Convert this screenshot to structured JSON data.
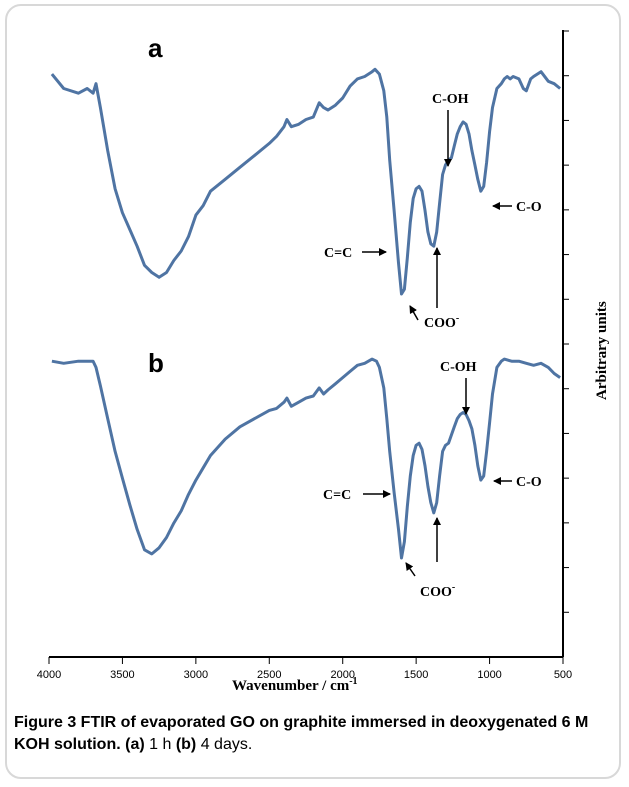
{
  "figure": {
    "caption_label": "Figure 3",
    "caption_bold": " FTIR of evaporated GO on graphite immersed in deoxygenated 6 M KOH solution. ",
    "caption_a_tag": "(a)",
    "caption_a_text": " 1 h ",
    "caption_b_tag": "(b)",
    "caption_b_text": " 4 days."
  },
  "colors": {
    "spectrum": "#4f74a3",
    "axis": "#000000"
  },
  "chart_data": {
    "type": "line",
    "title": "",
    "xlabel": "Wavenumber / cm-1",
    "ylabel": "Arbitrary units",
    "xlim": [
      4000,
      500
    ],
    "x_reversed": true,
    "x_ticks": [
      4000,
      3500,
      3000,
      2500,
      2000,
      1500,
      1000,
      500
    ],
    "x_tick_labels": [
      "4000",
      "3500",
      "3000",
      "2500",
      "2000",
      "1500",
      "1000",
      "500"
    ],
    "y_tick_count": 14,
    "grid": false,
    "panels": [
      {
        "label": "a",
        "points": [
          [
            3980,
            0.92
          ],
          [
            3900,
            0.86
          ],
          [
            3800,
            0.84
          ],
          [
            3740,
            0.86
          ],
          [
            3700,
            0.84
          ],
          [
            3680,
            0.88
          ],
          [
            3650,
            0.78
          ],
          [
            3600,
            0.6
          ],
          [
            3550,
            0.44
          ],
          [
            3500,
            0.34
          ],
          [
            3450,
            0.27
          ],
          [
            3400,
            0.2
          ],
          [
            3350,
            0.12
          ],
          [
            3300,
            0.09
          ],
          [
            3250,
            0.07
          ],
          [
            3200,
            0.09
          ],
          [
            3150,
            0.14
          ],
          [
            3100,
            0.18
          ],
          [
            3050,
            0.24
          ],
          [
            3000,
            0.33
          ],
          [
            2950,
            0.37
          ],
          [
            2900,
            0.43
          ],
          [
            2800,
            0.48
          ],
          [
            2700,
            0.53
          ],
          [
            2600,
            0.58
          ],
          [
            2500,
            0.63
          ],
          [
            2450,
            0.66
          ],
          [
            2400,
            0.7
          ],
          [
            2380,
            0.73
          ],
          [
            2350,
            0.7
          ],
          [
            2300,
            0.71
          ],
          [
            2250,
            0.73
          ],
          [
            2200,
            0.74
          ],
          [
            2160,
            0.8
          ],
          [
            2130,
            0.78
          ],
          [
            2100,
            0.77
          ],
          [
            2050,
            0.79
          ],
          [
            2000,
            0.82
          ],
          [
            1950,
            0.87
          ],
          [
            1900,
            0.9
          ],
          [
            1850,
            0.91
          ],
          [
            1800,
            0.93
          ],
          [
            1780,
            0.94
          ],
          [
            1750,
            0.92
          ],
          [
            1720,
            0.85
          ],
          [
            1700,
            0.74
          ],
          [
            1680,
            0.56
          ],
          [
            1650,
            0.35
          ],
          [
            1620,
            0.13
          ],
          [
            1600,
            0.0
          ],
          [
            1580,
            0.02
          ],
          [
            1560,
            0.15
          ],
          [
            1540,
            0.3
          ],
          [
            1520,
            0.4
          ],
          [
            1500,
            0.44
          ],
          [
            1480,
            0.45
          ],
          [
            1460,
            0.43
          ],
          [
            1440,
            0.35
          ],
          [
            1420,
            0.26
          ],
          [
            1400,
            0.21
          ],
          [
            1380,
            0.2
          ],
          [
            1360,
            0.26
          ],
          [
            1340,
            0.38
          ],
          [
            1320,
            0.5
          ],
          [
            1300,
            0.54
          ],
          [
            1280,
            0.56
          ],
          [
            1260,
            0.57
          ],
          [
            1240,
            0.62
          ],
          [
            1220,
            0.67
          ],
          [
            1200,
            0.7
          ],
          [
            1180,
            0.72
          ],
          [
            1160,
            0.71
          ],
          [
            1140,
            0.67
          ],
          [
            1120,
            0.6
          ],
          [
            1100,
            0.54
          ],
          [
            1080,
            0.48
          ],
          [
            1060,
            0.43
          ],
          [
            1040,
            0.45
          ],
          [
            1020,
            0.55
          ],
          [
            1000,
            0.68
          ],
          [
            980,
            0.78
          ],
          [
            950,
            0.86
          ],
          [
            920,
            0.88
          ],
          [
            900,
            0.9
          ],
          [
            880,
            0.91
          ],
          [
            860,
            0.9
          ],
          [
            840,
            0.91
          ],
          [
            800,
            0.9
          ],
          [
            770,
            0.86
          ],
          [
            750,
            0.85
          ],
          [
            720,
            0.9
          ],
          [
            700,
            0.91
          ],
          [
            650,
            0.93
          ],
          [
            600,
            0.89
          ],
          [
            560,
            0.88
          ],
          [
            520,
            0.86
          ]
        ]
      },
      {
        "label": "b",
        "points": [
          [
            3980,
            0.96
          ],
          [
            3900,
            0.95
          ],
          [
            3800,
            0.96
          ],
          [
            3700,
            0.96
          ],
          [
            3680,
            0.93
          ],
          [
            3650,
            0.84
          ],
          [
            3600,
            0.68
          ],
          [
            3550,
            0.52
          ],
          [
            3500,
            0.39
          ],
          [
            3450,
            0.26
          ],
          [
            3400,
            0.14
          ],
          [
            3350,
            0.04
          ],
          [
            3300,
            0.02
          ],
          [
            3250,
            0.05
          ],
          [
            3200,
            0.1
          ],
          [
            3150,
            0.17
          ],
          [
            3100,
            0.23
          ],
          [
            3050,
            0.31
          ],
          [
            3000,
            0.38
          ],
          [
            2950,
            0.44
          ],
          [
            2900,
            0.5
          ],
          [
            2800,
            0.58
          ],
          [
            2700,
            0.64
          ],
          [
            2600,
            0.68
          ],
          [
            2500,
            0.72
          ],
          [
            2450,
            0.73
          ],
          [
            2400,
            0.76
          ],
          [
            2380,
            0.78
          ],
          [
            2350,
            0.74
          ],
          [
            2300,
            0.76
          ],
          [
            2250,
            0.78
          ],
          [
            2200,
            0.79
          ],
          [
            2160,
            0.83
          ],
          [
            2130,
            0.8
          ],
          [
            2100,
            0.82
          ],
          [
            2050,
            0.85
          ],
          [
            2000,
            0.88
          ],
          [
            1950,
            0.91
          ],
          [
            1900,
            0.94
          ],
          [
            1850,
            0.95
          ],
          [
            1800,
            0.97
          ],
          [
            1770,
            0.96
          ],
          [
            1750,
            0.93
          ],
          [
            1720,
            0.83
          ],
          [
            1700,
            0.68
          ],
          [
            1680,
            0.52
          ],
          [
            1650,
            0.32
          ],
          [
            1620,
            0.14
          ],
          [
            1600,
            0.0
          ],
          [
            1580,
            0.08
          ],
          [
            1560,
            0.25
          ],
          [
            1540,
            0.4
          ],
          [
            1520,
            0.5
          ],
          [
            1500,
            0.55
          ],
          [
            1480,
            0.56
          ],
          [
            1460,
            0.53
          ],
          [
            1440,
            0.45
          ],
          [
            1420,
            0.35
          ],
          [
            1400,
            0.27
          ],
          [
            1380,
            0.22
          ],
          [
            1360,
            0.27
          ],
          [
            1340,
            0.4
          ],
          [
            1320,
            0.52
          ],
          [
            1300,
            0.55
          ],
          [
            1280,
            0.56
          ],
          [
            1260,
            0.6
          ],
          [
            1240,
            0.64
          ],
          [
            1220,
            0.68
          ],
          [
            1200,
            0.7
          ],
          [
            1180,
            0.71
          ],
          [
            1160,
            0.7
          ],
          [
            1140,
            0.67
          ],
          [
            1120,
            0.63
          ],
          [
            1100,
            0.55
          ],
          [
            1080,
            0.45
          ],
          [
            1060,
            0.38
          ],
          [
            1040,
            0.4
          ],
          [
            1020,
            0.52
          ],
          [
            1000,
            0.66
          ],
          [
            980,
            0.8
          ],
          [
            950,
            0.93
          ],
          [
            920,
            0.96
          ],
          [
            900,
            0.97
          ],
          [
            850,
            0.96
          ],
          [
            800,
            0.96
          ],
          [
            750,
            0.95
          ],
          [
            700,
            0.94
          ],
          [
            650,
            0.95
          ],
          [
            600,
            0.93
          ],
          [
            560,
            0.9
          ],
          [
            520,
            0.88
          ]
        ]
      }
    ],
    "annotations": [
      {
        "panel": "a",
        "text": "C-OH",
        "x": 1250,
        "arrow": "down"
      },
      {
        "panel": "a",
        "text": "C-O",
        "x": 1040,
        "arrow": "left"
      },
      {
        "panel": "a",
        "text": "C=C",
        "x": 1620,
        "arrow": "right"
      },
      {
        "panel": "a",
        "text": "COO",
        "superscript": "-",
        "x": 1590,
        "arrow": "up-left"
      },
      {
        "panel": "a",
        "text": "",
        "x": 1375,
        "arrow": "up"
      },
      {
        "panel": "b",
        "text": "C-OH",
        "x": 1160,
        "arrow": "down"
      },
      {
        "panel": "b",
        "text": "C-O",
        "x": 1050,
        "arrow": "left"
      },
      {
        "panel": "b",
        "text": "C=C",
        "x": 1610,
        "arrow": "right"
      },
      {
        "panel": "b",
        "text": "COO",
        "superscript": "-",
        "x": 1590,
        "arrow": "up-left"
      },
      {
        "panel": "b",
        "text": "",
        "x": 1375,
        "arrow": "up"
      }
    ]
  }
}
